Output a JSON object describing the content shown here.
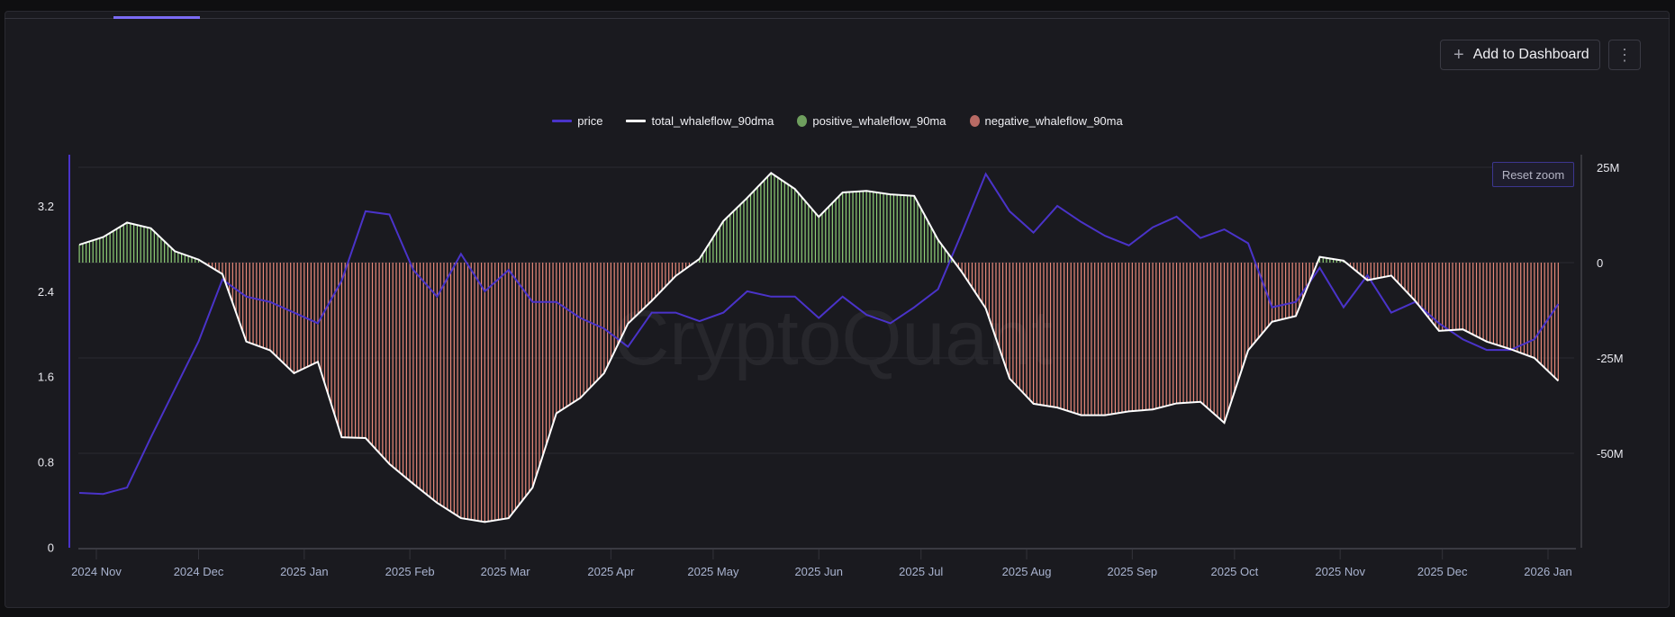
{
  "toolbar": {
    "add_to_dashboard": "Add to Dashboard",
    "add_icon": "plus-icon",
    "more_icon": "kebab-vertical-icon"
  },
  "watermark": "CryptoQuant",
  "reset_zoom": "Reset zoom",
  "chart_data": {
    "type": "line",
    "legend": [
      {
        "name": "price",
        "color": "#4a33c9",
        "marker": "line"
      },
      {
        "name": "total_whaleflow_90dma",
        "color": "#ffffff",
        "marker": "line"
      },
      {
        "name": "positive_whaleflow_90ma",
        "color": "#6f9f5e",
        "marker": "dot"
      },
      {
        "name": "negative_whaleflow_90ma",
        "color": "#b86a64",
        "marker": "dot"
      }
    ],
    "legend_placement": "top-center",
    "x_ticks": [
      "2024 Nov",
      "2024 Dec",
      "2025 Jan",
      "2025 Feb",
      "2025 Mar",
      "2025 Apr",
      "2025 May",
      "2025 Jun",
      "2025 Jul",
      "2025 Aug",
      "2025 Sep",
      "2025 Oct",
      "2025 Nov",
      "2025 Dec",
      "2026 Jan"
    ],
    "x_tick_dates": [
      "2024-11-01",
      "2024-12-01",
      "2025-01-01",
      "2025-02-01",
      "2025-03-01",
      "2025-04-01",
      "2025-05-01",
      "2025-06-01",
      "2025-07-01",
      "2025-08-01",
      "2025-09-01",
      "2025-10-01",
      "2025-11-01",
      "2025-12-01",
      "2026-01-01"
    ],
    "y_left": {
      "ticks": [
        "0",
        "0.8",
        "1.6",
        "2.4",
        "3.2"
      ],
      "tick_values": [
        0,
        0.8,
        1.6,
        2.4,
        3.2
      ],
      "range": [
        0,
        3.7
      ]
    },
    "y_right": {
      "ticks": [
        "25M",
        "0",
        "-25M",
        "-50M"
      ],
      "tick_values": [
        25,
        0,
        -25,
        -50
      ],
      "unit": "M"
    },
    "grid": true,
    "dates": [
      "2024-10-27",
      "2024-11-03",
      "2024-11-10",
      "2024-11-17",
      "2024-11-24",
      "2024-12-01",
      "2024-12-08",
      "2024-12-15",
      "2024-12-22",
      "2024-12-29",
      "2025-01-05",
      "2025-01-12",
      "2025-01-19",
      "2025-01-26",
      "2025-02-02",
      "2025-02-09",
      "2025-02-16",
      "2025-02-23",
      "2025-03-02",
      "2025-03-09",
      "2025-03-16",
      "2025-03-23",
      "2025-03-30",
      "2025-04-06",
      "2025-04-13",
      "2025-04-20",
      "2025-04-27",
      "2025-05-04",
      "2025-05-11",
      "2025-05-18",
      "2025-05-25",
      "2025-06-01",
      "2025-06-08",
      "2025-06-15",
      "2025-06-22",
      "2025-06-29",
      "2025-07-06",
      "2025-07-13",
      "2025-07-20",
      "2025-07-27",
      "2025-08-03",
      "2025-08-10",
      "2025-08-17",
      "2025-08-24",
      "2025-08-31",
      "2025-09-07",
      "2025-09-14",
      "2025-09-21",
      "2025-09-28",
      "2025-10-05",
      "2025-10-12",
      "2025-10-19",
      "2025-10-26",
      "2025-11-02",
      "2025-11-09",
      "2025-11-16",
      "2025-11-23",
      "2025-11-30",
      "2025-12-07",
      "2025-12-14",
      "2025-12-21",
      "2025-12-28",
      "2026-01-04"
    ],
    "series": [
      {
        "name": "price",
        "axis": "left",
        "values": [
          0.51,
          0.5,
          0.56,
          1.03,
          1.48,
          1.93,
          2.51,
          2.35,
          2.3,
          2.2,
          2.1,
          2.5,
          3.15,
          3.12,
          2.6,
          2.35,
          2.75,
          2.4,
          2.6,
          2.3,
          2.3,
          2.15,
          2.05,
          1.88,
          2.2,
          2.2,
          2.12,
          2.2,
          2.4,
          2.35,
          2.35,
          2.15,
          2.35,
          2.18,
          2.1,
          2.25,
          2.42,
          2.95,
          3.5,
          3.15,
          2.95,
          3.2,
          3.05,
          2.92,
          2.83,
          3.0,
          3.1,
          2.9,
          2.98,
          2.85,
          2.25,
          2.3,
          2.62,
          2.25,
          2.55,
          2.2,
          2.3,
          2.1,
          1.95,
          1.85,
          1.85,
          1.95,
          2.28
        ]
      },
      {
        "name": "total_whaleflow_90dma",
        "axis": "right",
        "values": [
          4.7,
          6.7,
          10.5,
          9.0,
          3.0,
          0.8,
          -3.0,
          -20.7,
          -23.0,
          -29.0,
          -26.0,
          -45.8,
          -46.0,
          -52.8,
          -58.0,
          -63.0,
          -67.0,
          -68.0,
          -67.0,
          -59.0,
          -39.5,
          -35.5,
          -29.0,
          -16.0,
          -10.0,
          -3.5,
          1.0,
          10.9,
          17.0,
          23.5,
          19.3,
          12.0,
          18.4,
          18.8,
          17.9,
          17.5,
          6.0,
          -2.5,
          -12.0,
          -30.4,
          -37.0,
          -38.0,
          -40.0,
          -40.0,
          -39.0,
          -38.5,
          -36.9,
          -36.5,
          -42.0,
          -23.0,
          -15.5,
          -14.0,
          1.5,
          0.5,
          -4.6,
          -3.4,
          -10.0,
          -17.9,
          -17.5,
          -20.7,
          -22.7,
          -25.0,
          -31.0
        ]
      }
    ]
  }
}
